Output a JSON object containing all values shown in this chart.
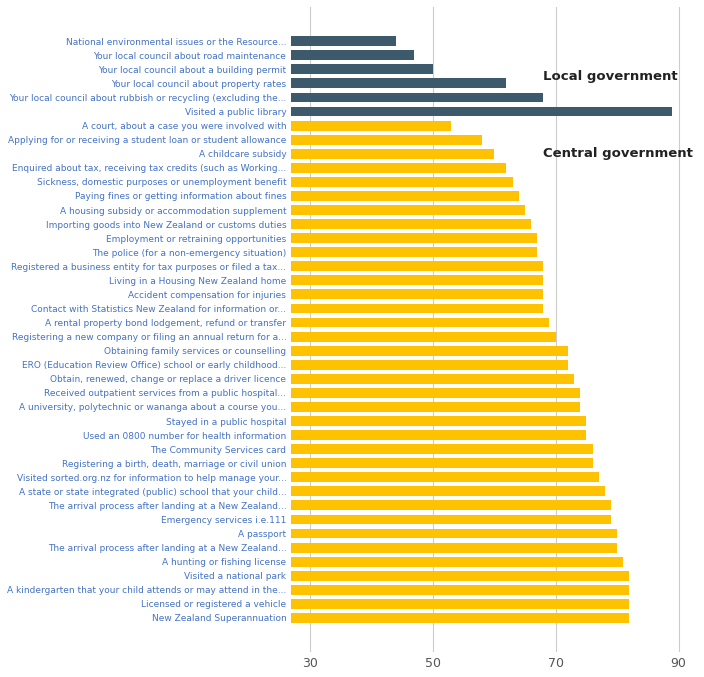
{
  "categories": [
    "National environmental issues or the Resource...",
    "Your local council about road maintenance",
    "Your local council about a building permit",
    "Your local council about property rates",
    "Your local council about rubbish or recycling (excluding the...",
    "Visited a public library",
    "A court, about a case you were involved with",
    "Applying for or receiving a student loan or student allowance",
    "A childcare subsidy",
    "Enquired about tax, receiving tax credits (such as Working...",
    "Sickness, domestic purposes or unemployment benefit",
    "Paying fines or getting information about fines",
    "A housing subsidy or accommodation supplement",
    "Importing goods into New Zealand or customs duties",
    "Employment or retraining opportunities",
    "The police (for a non-emergency situation)",
    "Registered a business entity for tax purposes or filed a tax...",
    "Living in a Housing New Zealand home",
    "Accident compensation for injuries",
    "Contact with Statistics New Zealand for information or...",
    "A rental property bond lodgement, refund or transfer",
    "Registering a new company or filing an annual return for a...",
    "Obtaining family services or counselling",
    "ERO (Education Review Office) school or early childhood...",
    "Obtain, renewed, change or replace a driver licence",
    "Received outpatient services from a public hospital...",
    "A university, polytechnic or wananga about a course you...",
    "Stayed in a public hospital",
    "Used an 0800 number for health information",
    "The Community Services card",
    "Registering a birth, death, marriage or civil union",
    "Visited sorted.org.nz for information to help manage your...",
    "A state or state integrated (public) school that your child...",
    "The arrival process after landing at a New Zealand...",
    "Emergency services i.e.111",
    "A passport",
    "The arrival process after landing at a New Zealand...",
    "A hunting or fishing license",
    "Visited a national park",
    "A kindergarten that your child attends or may attend in the...",
    "Licensed or registered a vehicle",
    "New Zealand Superannuation"
  ],
  "values": [
    44,
    47,
    50,
    62,
    68,
    89,
    53,
    58,
    60,
    62,
    63,
    64,
    65,
    66,
    67,
    67,
    68,
    68,
    68,
    68,
    69,
    70,
    72,
    72,
    73,
    74,
    74,
    75,
    75,
    76,
    76,
    77,
    78,
    79,
    79,
    80,
    80,
    81,
    82,
    82,
    82,
    82
  ],
  "colors": [
    "#3D5A6C",
    "#3D5A6C",
    "#3D5A6C",
    "#3D5A6C",
    "#3D5A6C",
    "#3D5A6C",
    "#FFC200",
    "#FFC200",
    "#FFC200",
    "#FFC200",
    "#FFC200",
    "#FFC200",
    "#FFC200",
    "#FFC200",
    "#FFC200",
    "#FFC200",
    "#FFC200",
    "#FFC200",
    "#FFC200",
    "#FFC200",
    "#FFC200",
    "#FFC200",
    "#FFC200",
    "#FFC200",
    "#FFC200",
    "#FFC200",
    "#FFC200",
    "#FFC200",
    "#FFC200",
    "#FFC200",
    "#FFC200",
    "#FFC200",
    "#FFC200",
    "#FFC200",
    "#FFC200",
    "#FFC200",
    "#FFC200",
    "#FFC200",
    "#FFC200",
    "#FFC200",
    "#FFC200",
    "#FFC200"
  ],
  "xlim": [
    27,
    93
  ],
  "xticks": [
    30,
    50,
    70,
    90
  ],
  "local_gov_label": "Local government",
  "central_gov_label": "Central government",
  "label_color": "#4472C4",
  "annotation_color": "#222222",
  "background_color": "#FFFFFF",
  "grid_color": "#CCCCCC",
  "bar_height": 0.7,
  "figsize": [
    7.04,
    6.77
  ],
  "dpi": 100
}
